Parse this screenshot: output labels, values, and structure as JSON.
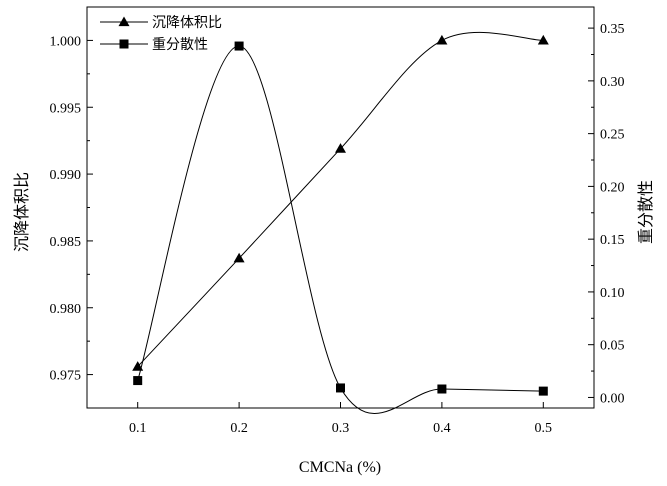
{
  "chart_data": {
    "type": "line",
    "x": [
      0.1,
      0.2,
      0.3,
      0.4,
      0.5
    ],
    "xlabel": "CMCNa (%)",
    "xlim": [
      0.05,
      0.55
    ],
    "xticks": [
      "0.1",
      "0.2",
      "0.3",
      "0.4",
      "0.5"
    ],
    "ylabel_left": "沉降体积比",
    "ylim_left": [
      0.9725,
      1.0025
    ],
    "yticks_left": [
      "0.975",
      "0.980",
      "0.985",
      "0.990",
      "0.995",
      "1.000"
    ],
    "ylabel_right": "重分散性",
    "ylim_right": [
      -0.01,
      0.37
    ],
    "yticks_right": [
      "0.00",
      "0.05",
      "0.10",
      "0.15",
      "0.20",
      "0.25",
      "0.30",
      "0.35"
    ],
    "grid": false,
    "legend_position": "top-left",
    "series": [
      {
        "name": "沉降体积比",
        "axis": "left",
        "marker": "triangle",
        "values": [
          0.9756,
          0.9837,
          0.9919,
          1.0,
          1.0
        ]
      },
      {
        "name": "重分散性",
        "axis": "right",
        "marker": "square",
        "values": [
          0.016,
          0.333,
          0.009,
          0.008,
          0.006
        ]
      }
    ]
  }
}
